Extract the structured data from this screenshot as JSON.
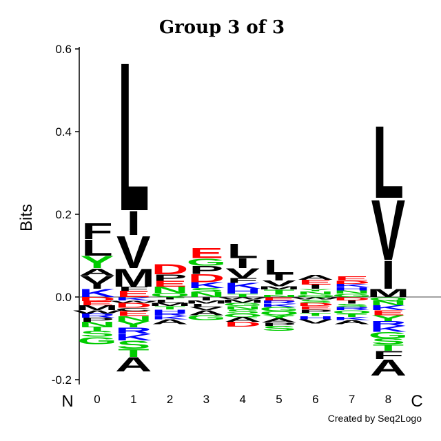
{
  "chart_data": {
    "type": "sequence-logo",
    "title": "Group 3 of 3",
    "ylabel": "Bits",
    "ylim": [
      -0.22,
      0.62
    ],
    "yticks": [
      -0.2,
      0.0,
      0.2,
      0.4,
      0.6
    ],
    "ytick_labels": [
      "-0.2",
      "0.0",
      "0.2",
      "0.4",
      "0.6"
    ],
    "n_terminus_label": "N",
    "c_terminus_label": "C",
    "credit": "Created by Seq2Logo",
    "colors": {
      "hydrophobic": "#000000",
      "acidic": "#ff0000",
      "basic": "#0000ff",
      "polar": "#00cc00"
    },
    "residue_colors": {
      "A": "#000000",
      "C": "#000000",
      "F": "#000000",
      "I": "#000000",
      "L": "#000000",
      "M": "#000000",
      "P": "#000000",
      "V": "#000000",
      "W": "#000000",
      "D": "#ff0000",
      "E": "#ff0000",
      "H": "#0000ff",
      "K": "#0000ff",
      "R": "#0000ff",
      "G": "#00cc00",
      "N": "#00cc00",
      "Q": "#00cc00",
      "S": "#00cc00",
      "T": "#00cc00",
      "Y": "#00cc00"
    },
    "positions": [
      {
        "label": "0",
        "positive": [
          [
            "K",
            0.02
          ],
          [
            "I",
            0.012
          ],
          [
            "V",
            0.02
          ],
          [
            "A",
            0.018
          ],
          [
            "Y",
            0.03
          ],
          [
            "L",
            0.04
          ],
          [
            "F",
            0.04
          ]
        ],
        "negative": [
          [
            "D",
            0.01
          ],
          [
            "E",
            0.01
          ],
          [
            "M",
            0.012
          ],
          [
            "W",
            0.008
          ],
          [
            "R",
            0.01
          ],
          [
            "P",
            0.01
          ],
          [
            "N",
            0.012
          ],
          [
            "T",
            0.01
          ],
          [
            "S",
            0.014
          ],
          [
            "G",
            0.018
          ]
        ]
      },
      {
        "label": "1",
        "positive": [
          [
            "E",
            0.015
          ],
          [
            "F",
            0.01
          ],
          [
            "M",
            0.045
          ],
          [
            "V",
            0.08
          ],
          [
            "I",
            0.06
          ],
          [
            "L",
            0.37
          ]
        ],
        "negative": [
          [
            "K",
            0.008
          ],
          [
            "W",
            0.006
          ],
          [
            "D",
            0.012
          ],
          [
            "C",
            0.008
          ],
          [
            "E",
            0.012
          ],
          [
            "N",
            0.012
          ],
          [
            "Y",
            0.015
          ],
          [
            "R",
            0.016
          ],
          [
            "K",
            0.016
          ],
          [
            "S",
            0.02
          ],
          [
            "T",
            0.02
          ],
          [
            "A",
            0.035
          ]
        ]
      },
      {
        "label": "2",
        "positive": [
          [
            "Q",
            0.01
          ],
          [
            "N",
            0.015
          ],
          [
            "E",
            0.014
          ],
          [
            "P",
            0.016
          ],
          [
            "D",
            0.025
          ]
        ],
        "negative": [
          [
            "I",
            0.006
          ],
          [
            "L",
            0.008
          ],
          [
            "M",
            0.008
          ],
          [
            "T",
            0.008
          ],
          [
            "H",
            0.008
          ],
          [
            "R",
            0.008
          ],
          [
            "K",
            0.008
          ],
          [
            "A",
            0.012
          ]
        ]
      },
      {
        "label": "3",
        "positive": [
          [
            "N",
            0.012
          ],
          [
            "S",
            0.01
          ],
          [
            "K",
            0.014
          ],
          [
            "D",
            0.02
          ],
          [
            "P",
            0.02
          ],
          [
            "G",
            0.018
          ],
          [
            "E",
            0.025
          ]
        ],
        "negative": [
          [
            "I",
            0.008
          ],
          [
            "M",
            0.008
          ],
          [
            "L",
            0.008
          ],
          [
            "V",
            0.008
          ],
          [
            "A",
            0.012
          ],
          [
            "G",
            0.012
          ]
        ]
      },
      {
        "label": "4",
        "positive": [
          [
            "T",
            0.008
          ],
          [
            "H",
            0.012
          ],
          [
            "K",
            0.014
          ],
          [
            "F",
            0.012
          ],
          [
            "V",
            0.024
          ],
          [
            "I",
            0.024
          ],
          [
            "L",
            0.036
          ]
        ],
        "negative": [
          [
            "W",
            0.006
          ],
          [
            "M",
            0.008
          ],
          [
            "G",
            0.008
          ],
          [
            "N",
            0.008
          ],
          [
            "S",
            0.01
          ],
          [
            "Q",
            0.008
          ],
          [
            "A",
            0.012
          ],
          [
            "D",
            0.012
          ]
        ]
      },
      {
        "label": "5",
        "positive": [
          [
            "N",
            0.006
          ],
          [
            "T",
            0.012
          ],
          [
            "M",
            0.008
          ],
          [
            "V",
            0.014
          ],
          [
            "I",
            0.014
          ],
          [
            "L",
            0.038
          ]
        ],
        "negative": [
          [
            "E",
            0.008
          ],
          [
            "R",
            0.008
          ],
          [
            "K",
            0.008
          ],
          [
            "G",
            0.01
          ],
          [
            "Q",
            0.01
          ],
          [
            "Y",
            0.008
          ],
          [
            "A",
            0.01
          ],
          [
            "P",
            0.008
          ],
          [
            "S",
            0.012
          ]
        ]
      },
      {
        "label": "6",
        "positive": [
          [
            "Q",
            0.006
          ],
          [
            "N",
            0.008
          ],
          [
            "Y",
            0.006
          ],
          [
            "I",
            0.01
          ],
          [
            "E",
            0.012
          ],
          [
            "A",
            0.012
          ]
        ],
        "negative": [
          [
            "W",
            0.006
          ],
          [
            "S",
            0.008
          ],
          [
            "D",
            0.008
          ],
          [
            "E",
            0.008
          ],
          [
            "P",
            0.008
          ],
          [
            "T",
            0.008
          ],
          [
            "H",
            0.008
          ],
          [
            "V",
            0.01
          ]
        ]
      },
      {
        "label": "7",
        "positive": [
          [
            "G",
            0.008
          ],
          [
            "N",
            0.008
          ],
          [
            "H",
            0.008
          ],
          [
            "K",
            0.008
          ],
          [
            "D",
            0.008
          ],
          [
            "E",
            0.01
          ]
        ],
        "negative": [
          [
            "D",
            0.008
          ],
          [
            "I",
            0.008
          ],
          [
            "S",
            0.008
          ],
          [
            "R",
            0.008
          ],
          [
            "Q",
            0.008
          ],
          [
            "T",
            0.008
          ],
          [
            "K",
            0.008
          ],
          [
            "A",
            0.01
          ]
        ]
      },
      {
        "label": "8",
        "positive": [
          [
            "M",
            0.02
          ],
          [
            "I",
            0.07
          ],
          [
            "V",
            0.15
          ],
          [
            "L",
            0.18
          ]
        ],
        "negative": [
          [
            "Q",
            0.008
          ],
          [
            "N",
            0.012
          ],
          [
            "K",
            0.012
          ],
          [
            "E",
            0.012
          ],
          [
            "Y",
            0.014
          ],
          [
            "R",
            0.012
          ],
          [
            "K",
            0.014
          ],
          [
            "G",
            0.016
          ],
          [
            "S",
            0.014
          ],
          [
            "T",
            0.016
          ],
          [
            "F",
            0.02
          ],
          [
            "A",
            0.04
          ]
        ]
      }
    ]
  }
}
